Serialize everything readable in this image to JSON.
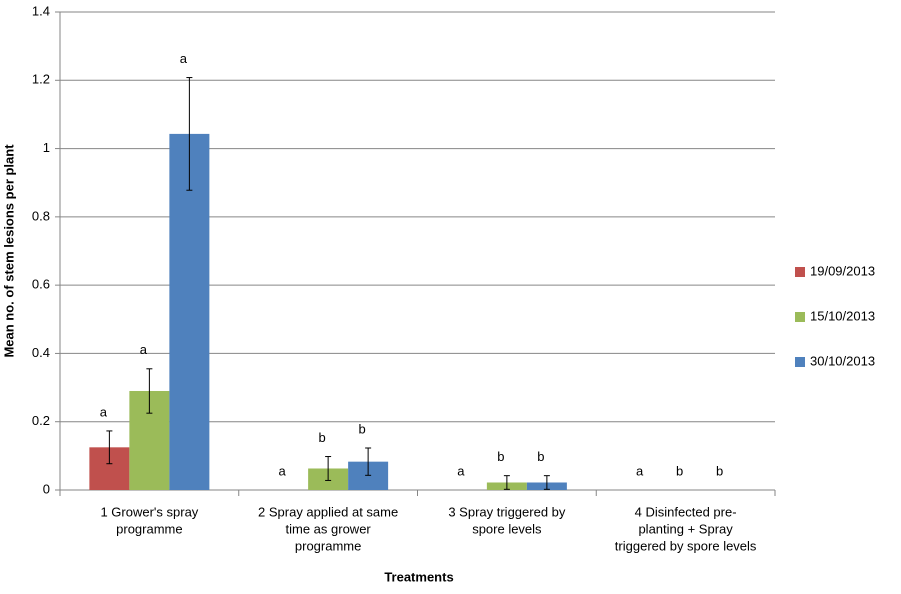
{
  "chart_data": {
    "type": "bar",
    "x_label": "Treatments",
    "y_label": "Mean no. of stem lesions per plant",
    "categories": [
      [
        "1 Grower's spray",
        "programme"
      ],
      [
        "2 Spray applied at same",
        "time as grower",
        "programme"
      ],
      [
        "3 Spray triggered by",
        "spore levels"
      ],
      [
        "4 Disinfected pre-",
        "planting + Spray",
        "triggered by spore levels"
      ]
    ],
    "series": [
      {
        "name": "19/09/2013",
        "color": "#c0504d",
        "values": [
          0.125,
          0,
          0,
          0
        ],
        "errors": [
          0.048,
          0,
          0,
          0
        ],
        "letters": [
          "a",
          "a",
          "a",
          "a"
        ]
      },
      {
        "name": "15/10/2013",
        "color": "#9bbb59",
        "values": [
          0.29,
          0.063,
          0.022,
          0
        ],
        "errors": [
          0.065,
          0.035,
          0.02,
          0
        ],
        "letters": [
          "a",
          "b",
          "b",
          "b"
        ]
      },
      {
        "name": "30/10/2013",
        "color": "#4f81bd",
        "values": [
          1.043,
          0.083,
          0.022,
          0
        ],
        "errors": [
          0.165,
          0.04,
          0.02,
          0
        ],
        "letters": [
          "a",
          "b",
          "b",
          "b"
        ]
      }
    ],
    "ylim": [
      0,
      1.4
    ],
    "yticks": [
      0,
      0.2,
      0.4,
      0.6,
      0.8,
      1,
      1.2,
      1.4
    ],
    "grid": true,
    "legend": "right"
  }
}
